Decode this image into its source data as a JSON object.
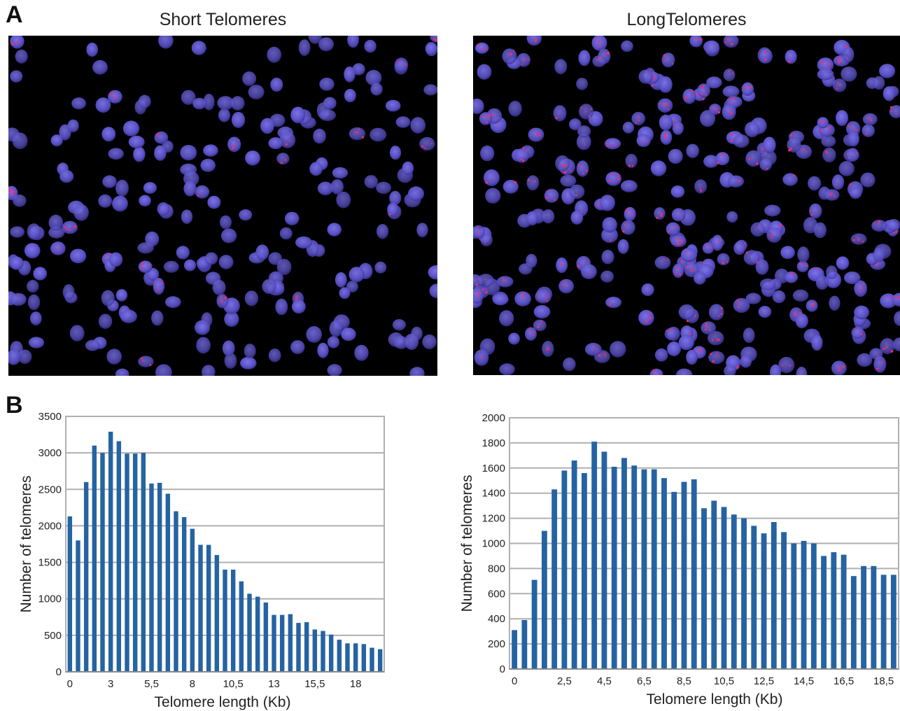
{
  "panels": {
    "a_label": "A",
    "b_label": "B"
  },
  "micrographs": [
    {
      "title": "Short Telomeres",
      "nucleus_color": "#5b52c9",
      "signal_color": "#ff2a6a",
      "signal_density": 0.15
    },
    {
      "title": "LongTelomeres",
      "nucleus_color": "#5b52c9",
      "signal_color": "#ff2a6a",
      "signal_density": 0.6
    }
  ],
  "chart_data": [
    {
      "type": "bar",
      "title": "",
      "xlabel": "Telomere length (Kb)",
      "ylabel": "Number of telomeres",
      "ylim": [
        0,
        3500
      ],
      "yticks": [
        0,
        500,
        1000,
        1500,
        2000,
        2500,
        3000,
        3500
      ],
      "x_tick_labels": [
        {
          "index": 0,
          "label": "0"
        },
        {
          "index": 5,
          "label": "3"
        },
        {
          "index": 10,
          "label": "5,5"
        },
        {
          "index": 15,
          "label": "8"
        },
        {
          "index": 20,
          "label": "10,5"
        },
        {
          "index": 25,
          "label": "13"
        },
        {
          "index": 30,
          "label": "15,5"
        },
        {
          "index": 35,
          "label": "18"
        }
      ],
      "grid": true,
      "bar_color": "#2563a3",
      "values": [
        2130,
        1800,
        2600,
        3100,
        3000,
        3290,
        3160,
        2990,
        2990,
        3000,
        2580,
        2590,
        2440,
        2200,
        2120,
        1960,
        1740,
        1740,
        1600,
        1400,
        1400,
        1240,
        1070,
        1030,
        950,
        780,
        780,
        790,
        670,
        680,
        580,
        560,
        510,
        440,
        390,
        390,
        380,
        330,
        310
      ]
    },
    {
      "type": "bar",
      "title": "",
      "xlabel": "Telomere length (Kb)",
      "ylabel": "Number of telomeres",
      "ylim": [
        0,
        2000
      ],
      "yticks": [
        0,
        200,
        400,
        600,
        800,
        1000,
        1200,
        1400,
        1600,
        1800,
        2000
      ],
      "x_tick_labels": [
        {
          "index": 0,
          "label": "0"
        },
        {
          "index": 5,
          "label": "2,5"
        },
        {
          "index": 9,
          "label": "4,5"
        },
        {
          "index": 13,
          "label": "6,5"
        },
        {
          "index": 17,
          "label": "8,5"
        },
        {
          "index": 21,
          "label": "10,5"
        },
        {
          "index": 25,
          "label": "12,5"
        },
        {
          "index": 29,
          "label": "14,5"
        },
        {
          "index": 33,
          "label": "16,5"
        },
        {
          "index": 37,
          "label": "18,5"
        }
      ],
      "grid": true,
      "bar_color": "#2563a3",
      "values": [
        310,
        390,
        710,
        1100,
        1430,
        1580,
        1660,
        1560,
        1810,
        1730,
        1610,
        1680,
        1620,
        1590,
        1590,
        1520,
        1410,
        1490,
        1510,
        1280,
        1340,
        1290,
        1230,
        1200,
        1140,
        1080,
        1170,
        1090,
        1000,
        1020,
        1000,
        900,
        930,
        910,
        740,
        820,
        820,
        750,
        750
      ]
    }
  ]
}
